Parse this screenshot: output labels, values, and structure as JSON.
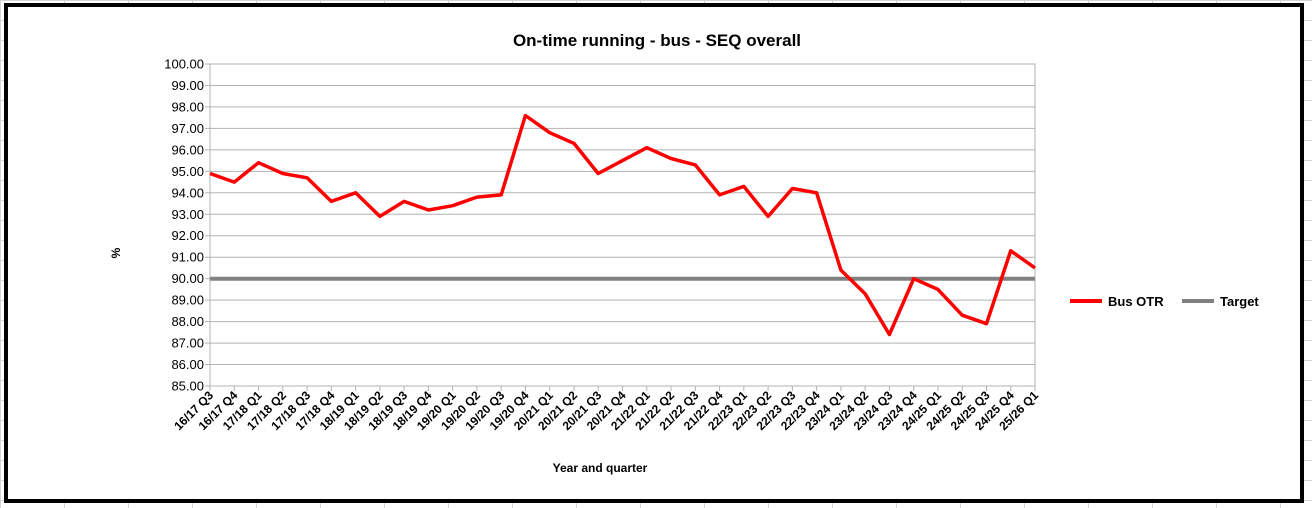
{
  "chart_data": {
    "type": "line",
    "title": "On-time running - bus - SEQ overall",
    "xlabel": "Year and quarter",
    "ylabel": "%",
    "ylim": [
      85,
      100
    ],
    "ytick_step": 1,
    "ytick_labels": [
      "85.00",
      "86.00",
      "87.00",
      "88.00",
      "89.00",
      "90.00",
      "91.00",
      "92.00",
      "93.00",
      "94.00",
      "95.00",
      "96.00",
      "97.00",
      "98.00",
      "99.00",
      "100.00"
    ],
    "grid": true,
    "legend_position": "right",
    "categories": [
      "16/17 Q3",
      "16/17 Q4",
      "17/18 Q1",
      "17/18 Q2",
      "17/18 Q3",
      "17/18 Q4",
      "18/19 Q1",
      "18/19 Q2",
      "18/19 Q3",
      "18/19 Q4",
      "19/20 Q1",
      "19/20 Q2",
      "19/20 Q3",
      "19/20 Q4",
      "20/21 Q1",
      "20/21 Q2",
      "20/21 Q3",
      "20/21 Q4",
      "21/22 Q1",
      "21/22 Q2",
      "21/22 Q3",
      "21/22 Q4",
      "22/23 Q1",
      "22/23 Q2",
      "22/23 Q3",
      "22/23 Q4",
      "23/24 Q1",
      "23/24 Q2",
      "23/24 Q3",
      "23/24 Q4",
      "24/25 Q1",
      "24/25 Q2",
      "24/25 Q3",
      "24/25 Q4",
      "25/26 Q1"
    ],
    "series": [
      {
        "name": "Bus OTR",
        "color": "#ff0000",
        "values": [
          94.9,
          94.5,
          95.4,
          94.9,
          94.7,
          93.6,
          94.0,
          92.9,
          93.6,
          93.2,
          93.4,
          93.8,
          93.9,
          97.6,
          96.8,
          96.3,
          94.9,
          95.5,
          96.1,
          95.6,
          95.3,
          93.9,
          94.3,
          92.9,
          94.2,
          94.0,
          90.4,
          89.3,
          87.4,
          90.0,
          89.5,
          88.3,
          87.9,
          91.3,
          90.5
        ]
      },
      {
        "name": "Target",
        "color": "#808080",
        "values": [
          90,
          90,
          90,
          90,
          90,
          90,
          90,
          90,
          90,
          90,
          90,
          90,
          90,
          90,
          90,
          90,
          90,
          90,
          90,
          90,
          90,
          90,
          90,
          90,
          90,
          90,
          90,
          90,
          90,
          90,
          90,
          90,
          90,
          90,
          90
        ]
      }
    ]
  }
}
